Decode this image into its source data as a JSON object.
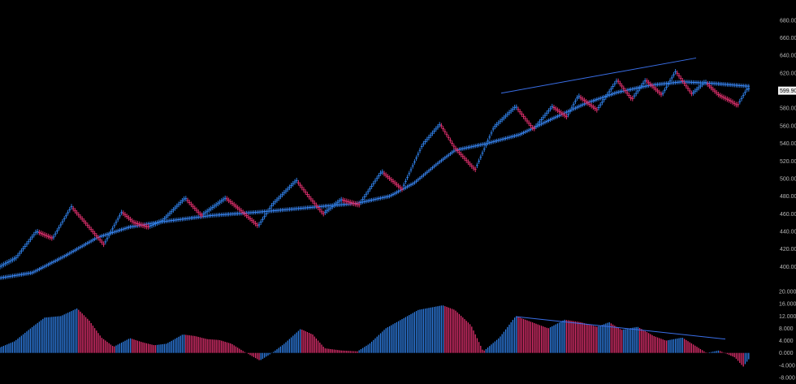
{
  "colors": {
    "background": "#000000",
    "up": "#2f7fe6",
    "down": "#e0306e",
    "ma": "#3b8cff",
    "trendline": "#3a6fe8",
    "tick_text": "#b8b8b8",
    "badge_bg": "#f2f2f2"
  },
  "chart_data": [
    {
      "type": "line",
      "name": "renko-price-chart",
      "ylim": [
        380,
        690
      ],
      "y_ticks": [
        "680.00",
        "660.00",
        "640.00",
        "620.00",
        "600.00",
        "580.00",
        "560.00",
        "540.00",
        "520.00",
        "500.00",
        "480.00",
        "460.00",
        "440.00",
        "420.00",
        "400.00"
      ],
      "y_tick_values": [
        680,
        660,
        640,
        620,
        600,
        580,
        560,
        540,
        520,
        500,
        480,
        460,
        440,
        420,
        400
      ],
      "current_price_label": "599.90",
      "current_price": 599.9,
      "price_anchors": [
        [
          0,
          400
        ],
        [
          20,
          410
        ],
        [
          45,
          440
        ],
        [
          65,
          432
        ],
        [
          88,
          468
        ],
        [
          105,
          450
        ],
        [
          128,
          425
        ],
        [
          150,
          462
        ],
        [
          165,
          450
        ],
        [
          182,
          445
        ],
        [
          200,
          452
        ],
        [
          228,
          478
        ],
        [
          248,
          458
        ],
        [
          278,
          478
        ],
        [
          295,
          465
        ],
        [
          318,
          446
        ],
        [
          335,
          470
        ],
        [
          365,
          498
        ],
        [
          380,
          480
        ],
        [
          398,
          460
        ],
        [
          420,
          476
        ],
        [
          442,
          470
        ],
        [
          470,
          508
        ],
        [
          495,
          488
        ],
        [
          520,
          538
        ],
        [
          542,
          562
        ],
        [
          560,
          535
        ],
        [
          585,
          510
        ],
        [
          608,
          558
        ],
        [
          635,
          582
        ],
        [
          657,
          556
        ],
        [
          680,
          582
        ],
        [
          698,
          570
        ],
        [
          712,
          594
        ],
        [
          735,
          578
        ],
        [
          760,
          612
        ],
        [
          778,
          590
        ],
        [
          795,
          612
        ],
        [
          815,
          595
        ],
        [
          832,
          622
        ],
        [
          852,
          596
        ],
        [
          868,
          610
        ],
        [
          885,
          595
        ],
        [
          900,
          588
        ],
        [
          908,
          583
        ],
        [
          920,
          602
        ]
      ],
      "ma_anchors": [
        [
          0,
          387
        ],
        [
          40,
          393
        ],
        [
          80,
          412
        ],
        [
          120,
          433
        ],
        [
          160,
          445
        ],
        [
          200,
          451
        ],
        [
          260,
          458
        ],
        [
          320,
          462
        ],
        [
          380,
          467
        ],
        [
          440,
          472
        ],
        [
          480,
          480
        ],
        [
          510,
          495
        ],
        [
          540,
          518
        ],
        [
          560,
          532
        ],
        [
          600,
          540
        ],
        [
          640,
          550
        ],
        [
          680,
          568
        ],
        [
          720,
          585
        ],
        [
          760,
          598
        ],
        [
          800,
          606
        ],
        [
          840,
          610
        ],
        [
          880,
          608
        ],
        [
          920,
          605
        ]
      ],
      "trendline": [
        [
          617,
          597
        ],
        [
          857,
          637
        ]
      ]
    },
    {
      "type": "bar",
      "name": "oscillator",
      "ylim": [
        -8,
        20
      ],
      "y_ticks": [
        "20.000",
        "16.000",
        "12.000",
        "8.000",
        "4.000",
        "0.000",
        "-4.000",
        "-8.000"
      ],
      "y_tick_values": [
        20,
        16,
        12,
        8,
        4,
        0,
        -4,
        -8
      ],
      "osc_anchors": [
        [
          0,
          1.8
        ],
        [
          18,
          3.8
        ],
        [
          40,
          8.5
        ],
        [
          55,
          11.5
        ],
        [
          75,
          12
        ],
        [
          95,
          14.5
        ],
        [
          110,
          10.5
        ],
        [
          125,
          5
        ],
        [
          140,
          2
        ],
        [
          160,
          4.8
        ],
        [
          175,
          3.5
        ],
        [
          190,
          2.5
        ],
        [
          205,
          3
        ],
        [
          225,
          6
        ],
        [
          240,
          5.5
        ],
        [
          255,
          4.5
        ],
        [
          270,
          4.2
        ],
        [
          285,
          3
        ],
        [
          300,
          0.5
        ],
        [
          320,
          -2.5
        ],
        [
          335,
          0
        ],
        [
          350,
          3
        ],
        [
          370,
          7.8
        ],
        [
          385,
          6
        ],
        [
          400,
          1.5
        ],
        [
          420,
          0.8
        ],
        [
          440,
          0.5
        ],
        [
          455,
          3
        ],
        [
          475,
          8
        ],
        [
          495,
          11
        ],
        [
          515,
          14
        ],
        [
          545,
          15.5
        ],
        [
          560,
          14
        ],
        [
          580,
          9
        ],
        [
          595,
          0.5
        ],
        [
          615,
          5
        ],
        [
          635,
          12
        ],
        [
          655,
          10
        ],
        [
          675,
          8
        ],
        [
          695,
          10.8
        ],
        [
          715,
          10
        ],
        [
          735,
          8.5
        ],
        [
          750,
          10
        ],
        [
          765,
          7.5
        ],
        [
          785,
          8.5
        ],
        [
          805,
          5.5
        ],
        [
          820,
          4
        ],
        [
          840,
          5
        ],
        [
          855,
          2.5
        ],
        [
          870,
          0
        ],
        [
          885,
          0.8
        ],
        [
          905,
          -1.5
        ],
        [
          915,
          -4.5
        ],
        [
          922,
          -2
        ]
      ],
      "trendline": [
        [
          635,
          11.8
        ],
        [
          893,
          4.5
        ]
      ]
    }
  ]
}
